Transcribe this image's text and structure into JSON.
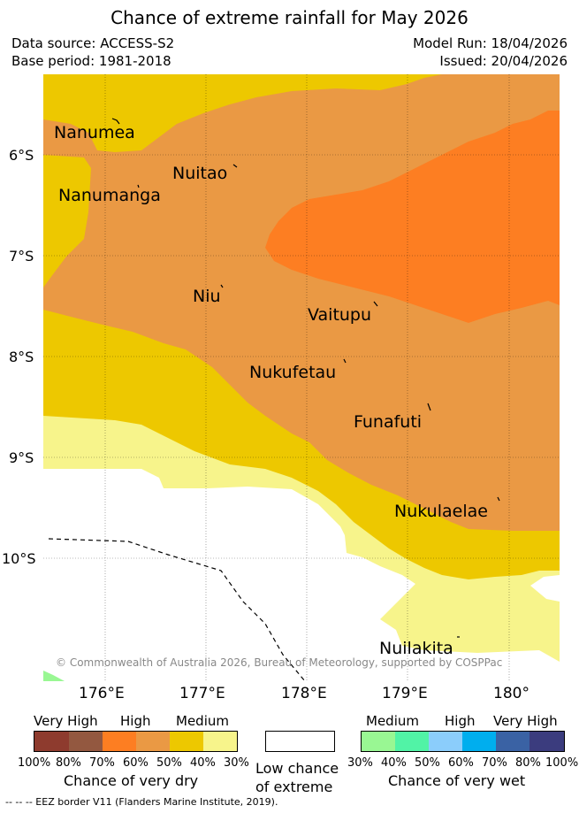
{
  "title": "Chance of extreme rainfall for May 2026",
  "data_source": "Data source: ACCESS-S2",
  "base_period": "Base period: 1981-2018",
  "model_run": "Model Run: 18/04/2026",
  "issued": "Issued: 20/04/2026",
  "map": {
    "lat_ticks": [
      "6°S",
      "7°S",
      "8°S",
      "9°S",
      "10°S"
    ],
    "lon_ticks": [
      "176°E",
      "177°E",
      "178°E",
      "179°E",
      "180°"
    ],
    "islands": [
      "Nanumea",
      "Nuitao",
      "Nanumanga",
      "Niu",
      "Vaitupu",
      "Nukufetau",
      "Funafuti",
      "Nukulaelae",
      "Nuilakita"
    ],
    "copyright": "© Commonwealth of Australia 2026, Bureau of Meteorology, supported by COSPPac",
    "colors": {
      "very_dry_medium_light": "#f7f48b",
      "very_dry_medium": "#edc800",
      "very_dry_high_light": "#ea9944",
      "very_dry_high": "#fd7e22",
      "low": "#ffffff",
      "wet_medium": "#99f793"
    }
  },
  "legend": {
    "dry": {
      "categories": [
        "Very High",
        "High",
        "Medium"
      ],
      "percents": [
        "100%",
        "80%",
        "70%",
        "60%",
        "50%",
        "40%",
        "30%"
      ],
      "colors": [
        "#8e3b2e",
        "#935840",
        "#fd7e22",
        "#ea9944",
        "#edc800",
        "#f7f48b"
      ],
      "label": "Chance of very dry"
    },
    "low": {
      "label_line1": "Low chance",
      "label_line2": "of extreme"
    },
    "wet": {
      "categories": [
        "Medium",
        "High",
        "Very High"
      ],
      "percents": [
        "30%",
        "40%",
        "50%",
        "60%",
        "70%",
        "80%",
        "100%"
      ],
      "colors": [
        "#99f793",
        "#51f3a6",
        "#8bcdfb",
        "#00aeee",
        "#3a62a4",
        "#3b3c7e"
      ],
      "label": "Chance of very wet"
    }
  },
  "eez_note": "-- -- -- EEZ border V11 (Flanders Marine Institute, 2019)."
}
